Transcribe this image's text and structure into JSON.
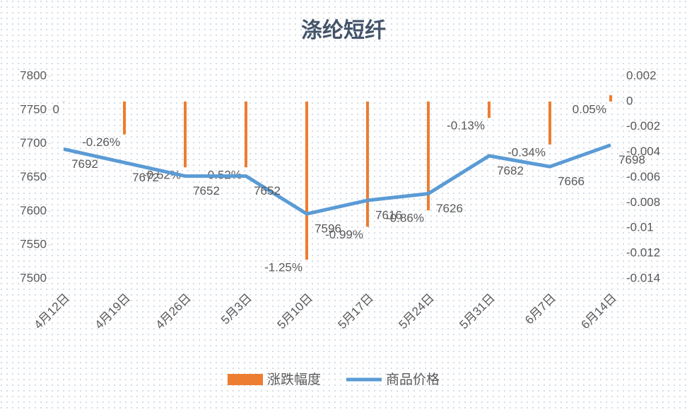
{
  "chart_data": {
    "type": "bar-line",
    "title": "涤纶短纤",
    "categories": [
      "4月12日",
      "4月19日",
      "4月26日",
      "5月3日",
      "5月10日",
      "5月17日",
      "5月24日",
      "5月31日",
      "6月7日",
      "6月14日"
    ],
    "series": [
      {
        "name": "涨跌幅度",
        "type": "bar",
        "axis": "y2",
        "color": "#ed7d31",
        "values": [
          0,
          -0.0026,
          -0.0052,
          -0.0052,
          -0.0125,
          -0.0099,
          -0.0086,
          -0.0013,
          -0.0034,
          0.0005
        ],
        "value_labels": [
          "0",
          "-0.26%",
          "-0.52%",
          "-0.52%",
          "-1.25%",
          "-0.99%",
          "-0.86%",
          "-0.13%",
          "-0.34%",
          "0.05%"
        ]
      },
      {
        "name": "商品价格",
        "type": "line",
        "axis": "y",
        "color": "#5b9bd5",
        "values": [
          7692,
          7672,
          7652,
          7652,
          7596,
          7616,
          7626,
          7682,
          7666,
          7698
        ]
      }
    ],
    "ylim": [
      7500,
      7800
    ],
    "yticks": [
      7500,
      7550,
      7600,
      7650,
      7700,
      7750,
      7800
    ],
    "y2lim": [
      -0.014,
      0.002
    ],
    "y2ticks": [
      -0.014,
      -0.012,
      -0.01,
      -0.008,
      -0.006,
      -0.004,
      -0.002,
      0,
      0.002
    ],
    "legend": "bottom"
  }
}
